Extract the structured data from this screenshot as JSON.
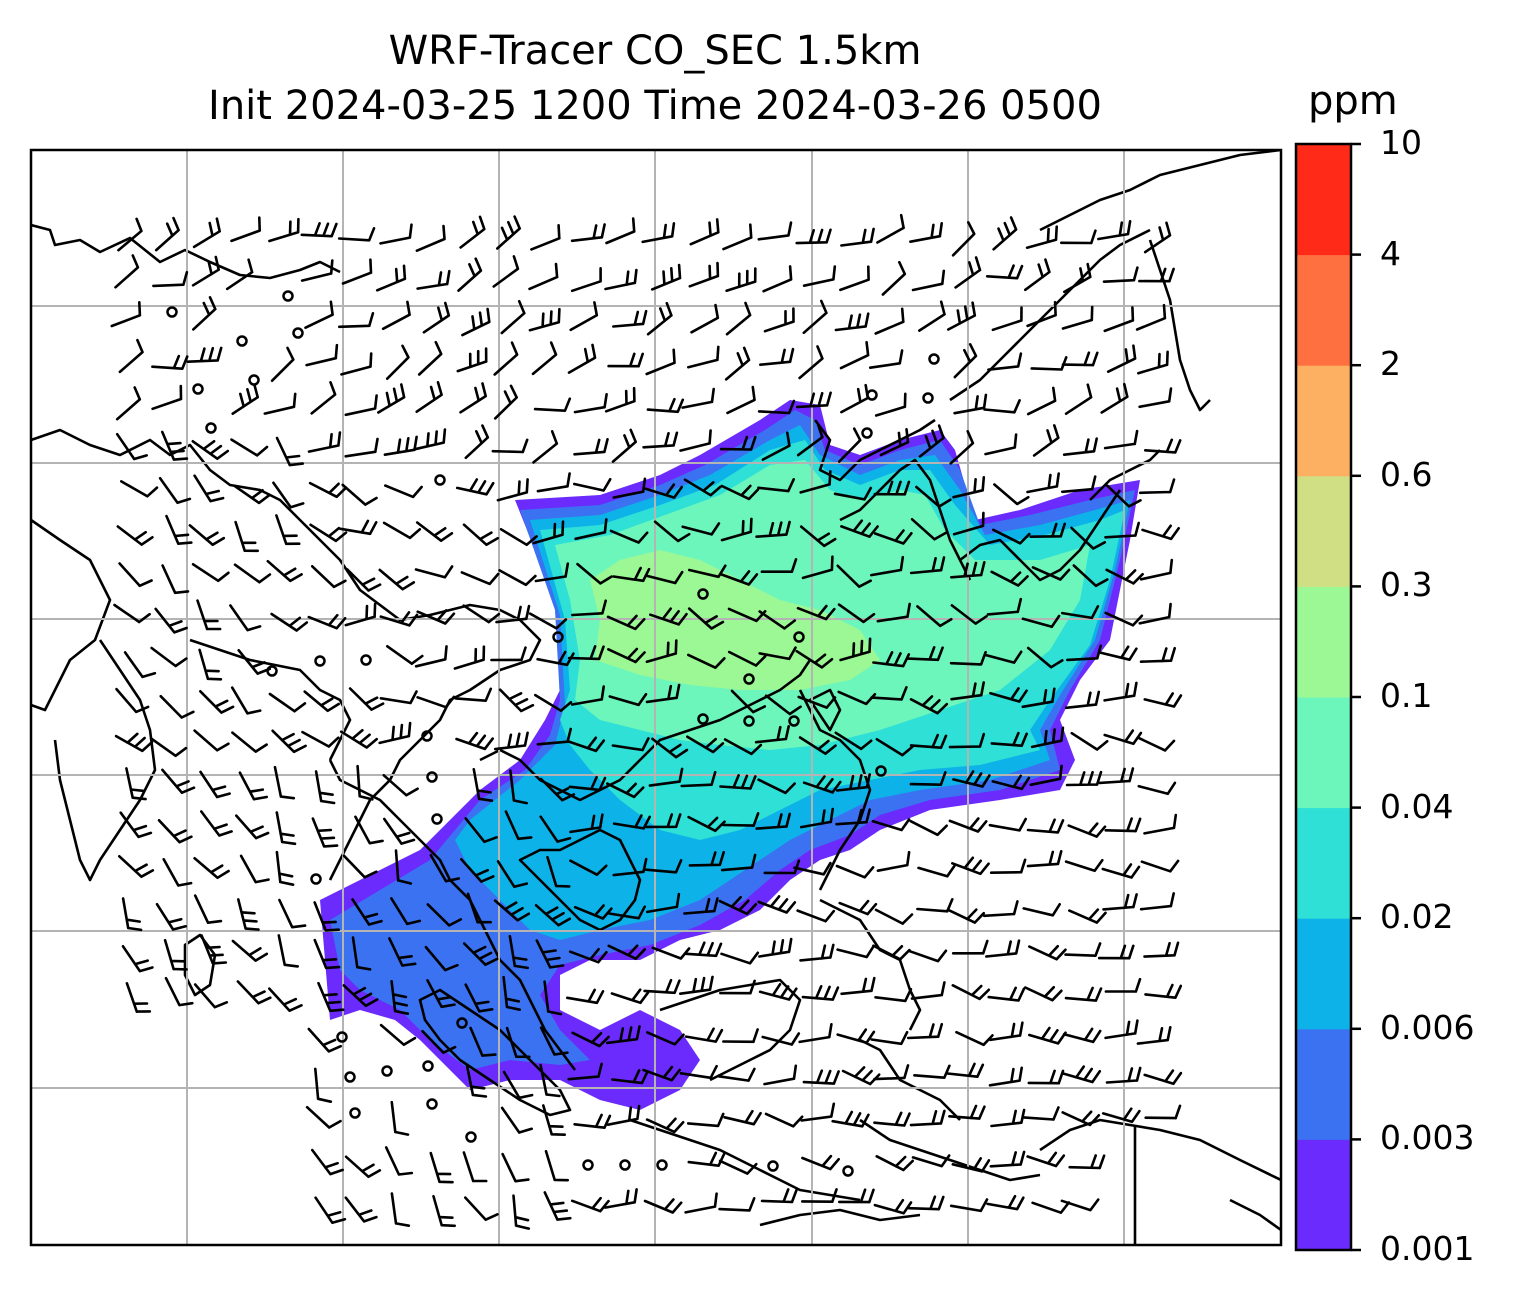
{
  "title": {
    "line1": "WRF-Tracer CO_SEC 1.5km",
    "line2": "Init 2024-03-25 1200 Time 2024-03-26 0500"
  },
  "colorbar": {
    "unit": "ppm",
    "levels": [
      {
        "label": "0.001",
        "color": "#6a2bfc"
      },
      {
        "label": "0.003",
        "color": "#3a72f2"
      },
      {
        "label": "0.006",
        "color": "#0db3e8"
      },
      {
        "label": "0.02",
        "color": "#2ee0d6"
      },
      {
        "label": "0.04",
        "color": "#6cf6bc"
      },
      {
        "label": "0.1",
        "color": "#9bf894"
      },
      {
        "label": "0.3",
        "color": "#d0df84"
      },
      {
        "label": "0.6",
        "color": "#fdb061"
      },
      {
        "label": "2",
        "color": "#ff7040"
      },
      {
        "label": "4",
        "color": "#ff2a18"
      },
      {
        "label": "10",
        "color": ""
      }
    ]
  },
  "map": {
    "variable": "CO_SEC tracer concentration",
    "overlays": [
      "coastlines",
      "country-borders",
      "lat-lon-gridlines",
      "wind-barbs"
    ],
    "gridlines": true,
    "calm_marker": "small-circle"
  }
}
